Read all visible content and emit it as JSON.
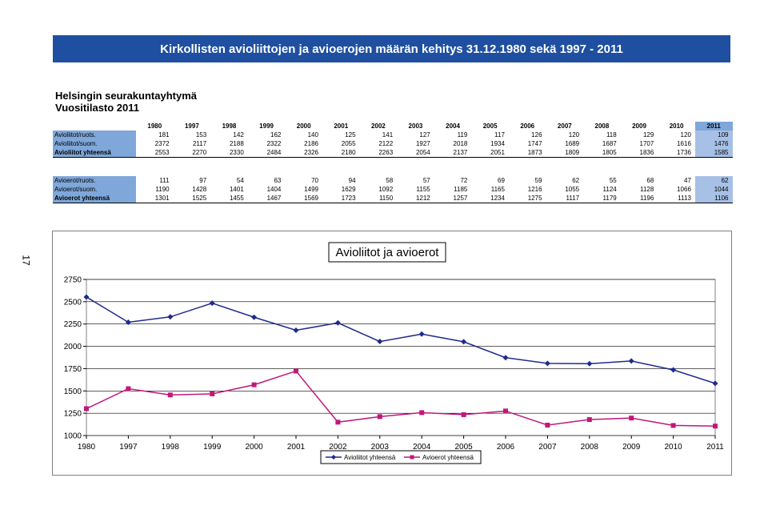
{
  "page": {
    "banner": "Kirkollisten avioliittojen ja avioerojen määrän kehitys 31.12.1980 sekä 1997 - 2011",
    "org": "Helsingin seurakuntayhtymä",
    "subtitle": "Vuositilasto 2011",
    "page_number": "17"
  },
  "years": [
    "1980",
    "1997",
    "1998",
    "1999",
    "2000",
    "2001",
    "2002",
    "2003",
    "2004",
    "2005",
    "2006",
    "2007",
    "2008",
    "2009",
    "2010",
    "2011"
  ],
  "marriage_table": {
    "rows": [
      {
        "label": "Avioliitot/ruots.",
        "values": [
          181,
          153,
          142,
          162,
          140,
          125,
          141,
          127,
          119,
          117,
          126,
          120,
          118,
          129,
          120,
          109
        ]
      },
      {
        "label": "Avioliitot/suom.",
        "values": [
          2372,
          2117,
          2188,
          2322,
          2186,
          2055,
          2122,
          1927,
          2018,
          1934,
          1747,
          1689,
          1687,
          1707,
          1616,
          1476
        ]
      },
      {
        "label": "Avioliitot yhteensä",
        "values": [
          2553,
          2270,
          2330,
          2484,
          2326,
          2180,
          2263,
          2054,
          2137,
          2051,
          1873,
          1809,
          1805,
          1836,
          1736,
          1585
        ]
      }
    ]
  },
  "divorce_table": {
    "rows": [
      {
        "label": "Avioerot/ruots.",
        "values": [
          111,
          97,
          54,
          63,
          70,
          94,
          58,
          57,
          72,
          69,
          59,
          62,
          55,
          68,
          47,
          62
        ]
      },
      {
        "label": "Avioerot/suom.",
        "values": [
          1190,
          1428,
          1401,
          1404,
          1499,
          1629,
          1092,
          1155,
          1185,
          1165,
          1216,
          1055,
          1124,
          1128,
          1066,
          1044
        ]
      },
      {
        "label": "Avioerot yhteensä",
        "values": [
          1301,
          1525,
          1455,
          1467,
          1569,
          1723,
          1150,
          1212,
          1257,
          1234,
          1275,
          1117,
          1179,
          1196,
          1113,
          1106
        ]
      }
    ]
  },
  "chart_data": {
    "type": "line",
    "title": "Avioliitot ja avioerot",
    "categories": [
      "1980",
      "1997",
      "1998",
      "1999",
      "2000",
      "2001",
      "2002",
      "2003",
      "2004",
      "2005",
      "2006",
      "2007",
      "2008",
      "2009",
      "2010",
      "2011"
    ],
    "series": [
      {
        "name": "Avioliitot yhteensä",
        "color": "#1f2a8c",
        "marker": "diamond",
        "values": [
          2553,
          2270,
          2330,
          2484,
          2326,
          2180,
          2263,
          2054,
          2137,
          2051,
          1873,
          1809,
          1805,
          1836,
          1736,
          1585
        ]
      },
      {
        "name": "Avioerot yhteensä",
        "color": "#c0187a",
        "marker": "square",
        "values": [
          1301,
          1525,
          1455,
          1467,
          1569,
          1723,
          1150,
          1212,
          1257,
          1234,
          1275,
          1117,
          1179,
          1196,
          1113,
          1106
        ]
      }
    ],
    "y_ticks": [
      "1000",
      "1250",
      "1500",
      "1750",
      "2000",
      "2250",
      "2500",
      "2750"
    ],
    "ylim": [
      1000,
      2750
    ],
    "grid": true,
    "legend_position": "bottom"
  }
}
